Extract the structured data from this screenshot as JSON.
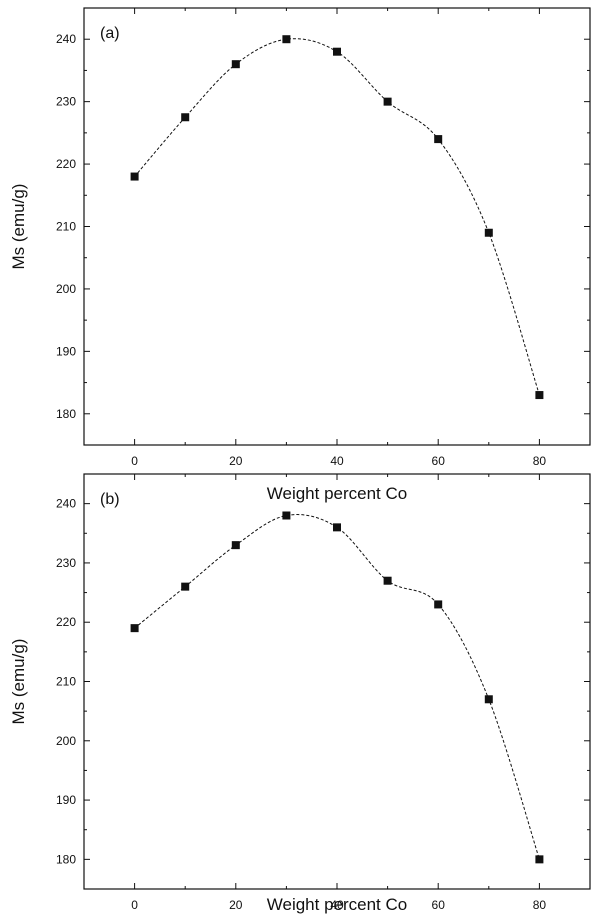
{
  "chart_data": [
    {
      "type": "line",
      "panel_label": "(a)",
      "xlabel": "Weight percent Co",
      "ylabel": "Ms (emu/g)",
      "xlim": [
        -10,
        90
      ],
      "ylim": [
        175,
        245
      ],
      "xticks": [
        0,
        20,
        40,
        60,
        80
      ],
      "yticks": [
        180,
        190,
        200,
        210,
        220,
        230,
        240
      ],
      "grid": false,
      "legend": "none",
      "line_style": "dashed",
      "marker": "square",
      "series": [
        {
          "x": [
            0,
            10,
            20,
            30,
            40,
            50,
            60,
            70,
            80
          ],
          "y": [
            218,
            227.5,
            236,
            240,
            238,
            230,
            224,
            209,
            183
          ]
        }
      ]
    },
    {
      "type": "line",
      "panel_label": "(b)",
      "xlabel": "Weight percent Co",
      "ylabel": "Ms (emu/g)",
      "xlim": [
        -10,
        90
      ],
      "ylim": [
        175,
        245
      ],
      "xticks": [
        0,
        20,
        40,
        60,
        80
      ],
      "yticks": [
        180,
        190,
        200,
        210,
        220,
        230,
        240
      ],
      "grid": false,
      "legend": "none",
      "line_style": "dashed",
      "marker": "square",
      "series": [
        {
          "x": [
            0,
            10,
            20,
            30,
            40,
            50,
            60,
            70,
            80
          ],
          "y": [
            219,
            226,
            233,
            238,
            236,
            227,
            223,
            207,
            180
          ]
        }
      ]
    }
  ]
}
